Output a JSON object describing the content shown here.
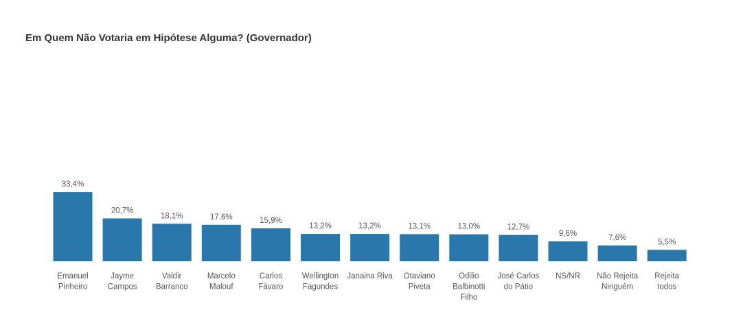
{
  "chart_data": {
    "type": "bar",
    "title": "Em Quem Não Votaria em Hipótese Alguma? (Governador)",
    "xlabel": "",
    "ylabel": "",
    "ylim": [
      0,
      35
    ],
    "grid": false,
    "legend": "none",
    "bar_color": "#2a77ab",
    "categories": [
      [
        "Emanuel",
        "Pinheiro"
      ],
      [
        "Jayme",
        "Campos"
      ],
      [
        "Valdir",
        "Barranco"
      ],
      [
        "Marcelo",
        "Malouf"
      ],
      [
        "Carlos",
        "Fávaro"
      ],
      [
        "Wellington",
        "Fagundes"
      ],
      [
        "Janaina Riva"
      ],
      [
        "Otaviano",
        "Piveta"
      ],
      [
        "Odilio",
        "Balbinotti",
        "Filho"
      ],
      [
        "José Carlos",
        "do Pátio"
      ],
      [
        "NS/NR"
      ],
      [
        "Não Rejeita",
        "Ninguém"
      ],
      [
        "Rejeita",
        "todos"
      ]
    ],
    "values": [
      33.4,
      20.7,
      18.1,
      17.6,
      15.9,
      13.2,
      13.2,
      13.1,
      13.0,
      12.7,
      9.6,
      7.6,
      5.5
    ],
    "data_labels": [
      "33,4%",
      "20,7%",
      "18,1%",
      "17,6%",
      "15,9%",
      "13,2%",
      "13,2%",
      "13,1%",
      "13,0%",
      "12,7%",
      "9,6%",
      "7,6%",
      "5,5%"
    ]
  }
}
